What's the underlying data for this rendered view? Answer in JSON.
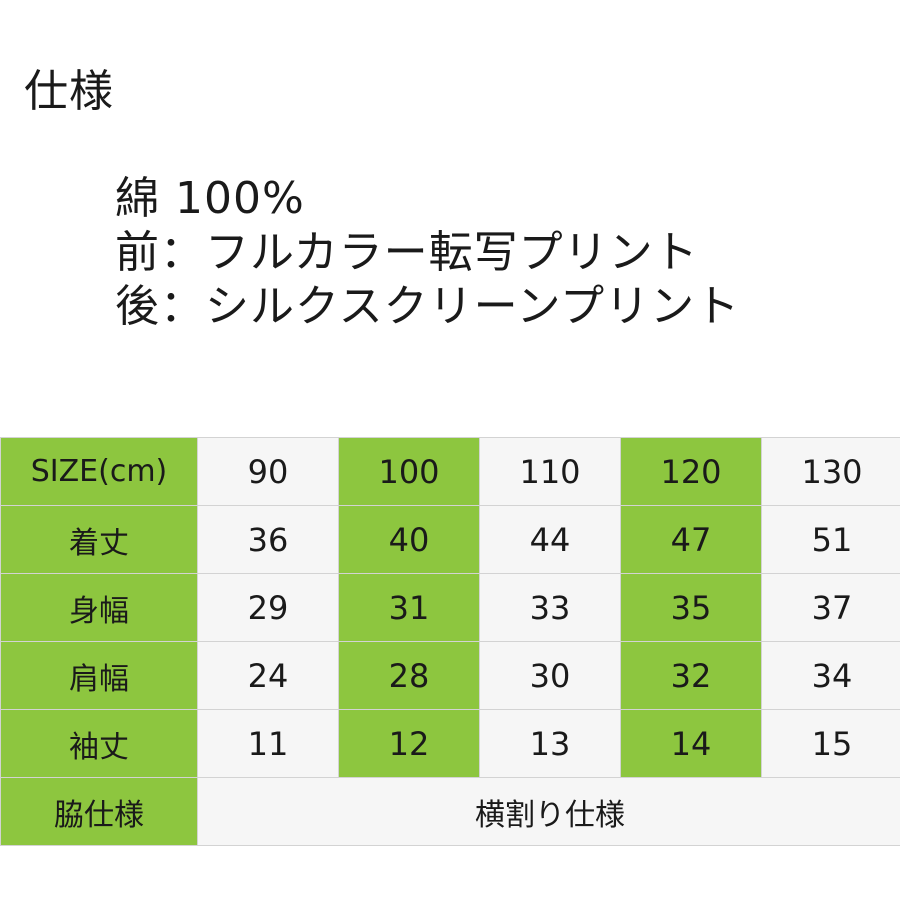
{
  "heading": "仕様",
  "specs": [
    "綿 100%",
    "前：フルカラー転写プリント",
    "後：シルクスクリーンプリント"
  ],
  "size_table": {
    "header_label": "SIZE(cm)",
    "sizes": [
      "90",
      "100",
      "110",
      "120",
      "130"
    ],
    "rows": [
      {
        "label": "着丈",
        "values": [
          "36",
          "40",
          "44",
          "47",
          "51"
        ]
      },
      {
        "label": "身幅",
        "values": [
          "29",
          "31",
          "33",
          "35",
          "37"
        ]
      },
      {
        "label": "肩幅",
        "values": [
          "24",
          "28",
          "30",
          "32",
          "34"
        ]
      },
      {
        "label": "袖丈",
        "values": [
          "11",
          "12",
          "13",
          "14",
          "15"
        ]
      }
    ],
    "side_spec_label": "脇仕様",
    "side_spec_value": "横割り仕様",
    "colors": {
      "highlight": "#8dc63f",
      "cell": "#f6f6f6",
      "border": "#d3d3d3"
    }
  }
}
